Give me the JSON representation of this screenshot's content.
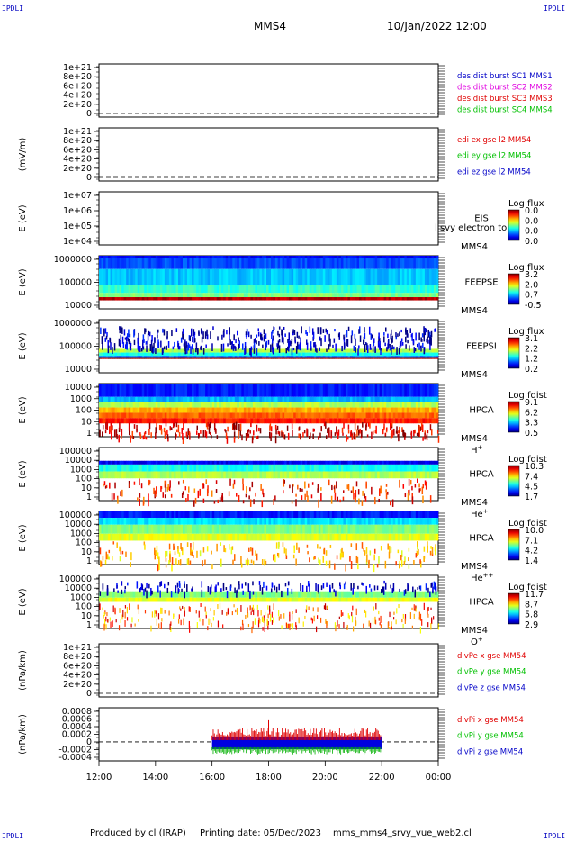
{
  "corner_label": "IPDLI",
  "header": {
    "spacecraft": "MMS4",
    "datetime": "10/Jan/2022 12:00"
  },
  "footer": {
    "produced_by": "Produced by cl (IRAP)",
    "printing_date": "Printing date: 05/Dec/2023",
    "script": "mms_mms4_srvy_vue_web2.cl"
  },
  "colors": {
    "blue": "#0000c8",
    "magenta": "#e000e0",
    "red": "#e00000",
    "green": "#00c000"
  },
  "chart_data": [
    {
      "id": "p1",
      "type": "line",
      "ylabel": "",
      "yticks": [
        "1e+21",
        "8e+20",
        "6e+20",
        "4e+20",
        "2e+20",
        "0"
      ],
      "legend": [
        {
          "text": "des dist burst SC1 MMS1",
          "color": "blue"
        },
        {
          "text": "des dist burst SC2 MMS2",
          "color": "magenta"
        },
        {
          "text": "des dist burst SC3 MMS3",
          "color": "red"
        },
        {
          "text": "des dist burst SC4 MMS4",
          "color": "green"
        }
      ],
      "zero_line": true
    },
    {
      "id": "p2",
      "type": "line",
      "ylabel": "(mV/m)",
      "yticks": [
        "1e+21",
        "8e+20",
        "6e+20",
        "4e+20",
        "2e+20",
        "0"
      ],
      "legend": [
        {
          "text": "edi ex gse l2 MM54",
          "color": "red"
        },
        {
          "text": "edi ey gse l2 MM54",
          "color": "green"
        },
        {
          "text": "edi ez gse l2 MM54",
          "color": "blue"
        }
      ],
      "zero_line": true
    },
    {
      "id": "p3",
      "type": "heatmap",
      "ylabel": "E (eV)",
      "yticks": [
        "1e+07",
        "1e+06",
        "1e+05",
        "1e+04"
      ],
      "instrument": [
        "EIS",
        "MMS4"
      ],
      "overlay_text": "l svy electron to",
      "cbar_title": "Log flux",
      "cbar_ticks": [
        "0.0",
        "0.0",
        "0.0",
        "0.0"
      ],
      "style": "empty"
    },
    {
      "id": "p4",
      "type": "heatmap",
      "ylabel": "E (eV)",
      "yticks": [
        "1000000",
        "100000",
        "10000"
      ],
      "instrument": [
        "FEEPSE",
        "MMS4"
      ],
      "cbar_title": "Log flux",
      "cbar_ticks": [
        "3.2",
        "2.0",
        "0.7",
        "-0.5"
      ],
      "style": "feepse"
    },
    {
      "id": "p5",
      "type": "heatmap",
      "ylabel": "E (eV)",
      "yticks": [
        "1000000",
        "100000",
        "10000"
      ],
      "instrument": [
        "FEEPSI",
        "MMS4"
      ],
      "cbar_title": "Log flux",
      "cbar_ticks": [
        "3.1",
        "2.2",
        "1.2",
        "0.2"
      ],
      "style": "feepsi"
    },
    {
      "id": "p6",
      "type": "heatmap",
      "ylabel": "E (eV)",
      "yticks": [
        "10000",
        "1000",
        "100",
        "10",
        "1"
      ],
      "instrument": [
        "HPCA",
        "MMS4"
      ],
      "species": "H",
      "species_sup": "+",
      "cbar_title": "Log fdist",
      "cbar_ticks": [
        "9.1",
        "6.2",
        "3.3",
        "0.5"
      ],
      "style": "hplus"
    },
    {
      "id": "p7",
      "type": "heatmap",
      "ylabel": "E (eV)",
      "yticks": [
        "100000",
        "10000",
        "1000",
        "100",
        "10",
        "1"
      ],
      "instrument": [
        "HPCA",
        "MMS4"
      ],
      "species": "He",
      "species_sup": "+",
      "cbar_title": "Log fdist",
      "cbar_ticks": [
        "10.3",
        "7.4",
        "4.5",
        "1.7"
      ],
      "style": "heplus"
    },
    {
      "id": "p8",
      "type": "heatmap",
      "ylabel": "E (eV)",
      "yticks": [
        "100000",
        "10000",
        "1000",
        "100",
        "10",
        "1"
      ],
      "instrument": [
        "HPCA",
        "MMS4"
      ],
      "species": "He",
      "species_sup": "++",
      "cbar_title": "Log fdist",
      "cbar_ticks": [
        "10.0",
        "7.1",
        "4.2",
        "1.4"
      ],
      "style": "hepp"
    },
    {
      "id": "p9",
      "type": "heatmap",
      "ylabel": "E (eV)",
      "yticks": [
        "100000",
        "10000",
        "1000",
        "100",
        "10",
        "1"
      ],
      "instrument": [
        "HPCA",
        "MMS4"
      ],
      "species": "O",
      "species_sup": "+",
      "cbar_title": "Log fdist",
      "cbar_ticks": [
        "11.7",
        "8.7",
        "5.8",
        "2.9"
      ],
      "style": "oplus"
    },
    {
      "id": "p10",
      "type": "line",
      "ylabel": "(nPa/km)",
      "yticks": [
        "1e+21",
        "8e+20",
        "6e+20",
        "4e+20",
        "2e+20",
        "0"
      ],
      "legend": [
        {
          "text": "dlvPe x gse MM54",
          "color": "red"
        },
        {
          "text": "dlvPe y gse MM54",
          "color": "green"
        },
        {
          "text": "dlvPe z gse MM54",
          "color": "blue"
        }
      ],
      "zero_line": true
    },
    {
      "id": "p11",
      "type": "line",
      "ylabel": "(nPa/km)",
      "yticks": [
        "0.0008",
        "0.0006",
        "0.0004",
        "0.0002",
        "0",
        "-0.0002",
        "-0.0004"
      ],
      "ylim": [
        -0.0005,
        0.0009
      ],
      "legend": [
        {
          "text": "dlvPi x gse MM54",
          "color": "red"
        },
        {
          "text": "dlvPi y gse MM54",
          "color": "green"
        },
        {
          "text": "dlvPi z gse MM54",
          "color": "blue"
        }
      ],
      "zero_line": true,
      "data_hours": [
        16.0,
        22.0
      ]
    }
  ],
  "xaxis": {
    "ticks": [
      "12:00",
      "14:00",
      "16:00",
      "18:00",
      "20:00",
      "22:00",
      "00:00"
    ],
    "range_hours": [
      12,
      24
    ]
  }
}
